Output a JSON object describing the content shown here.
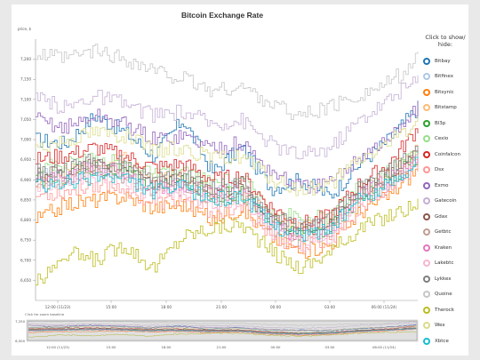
{
  "chart_data": {
    "type": "line",
    "title": "Bitcoin Exchange Rate",
    "ylabel": "price, $",
    "ylim": [
      6600,
      7250
    ],
    "y_ticks": [
      6650,
      6700,
      6750,
      6800,
      6850,
      6900,
      6950,
      7000,
      7050,
      7100,
      7150,
      7200
    ],
    "y_tick_labels": [
      "6,650",
      "6,700",
      "6,750",
      "6,800",
      "6,850",
      "6,900",
      "6,950",
      "7,000",
      "7,050",
      "7,100",
      "7,150",
      "7,200"
    ],
    "x_ticks": [
      "12:00 (11/23)",
      "15:00",
      "18:00",
      "21:00",
      "00:00",
      "03:00",
      "06:00 (11/24)"
    ],
    "legend_title": "Click to show/ hide:",
    "series": [
      {
        "name": "Bitbay",
        "color": "#1f77b4",
        "values": [
          7000,
          6990,
          7060,
          7020,
          6960,
          7050,
          6920,
          6980,
          6880,
          6900,
          6860,
          6940,
          7000,
          7080
        ]
      },
      {
        "name": "Bitfinex",
        "color": "#aec7e8",
        "values": [
          6920,
          6900,
          6930,
          6910,
          6880,
          6890,
          6870,
          6880,
          6800,
          6780,
          6790,
          6860,
          6890,
          6950
        ]
      },
      {
        "name": "Bitsynic",
        "color": "#ff7f0e",
        "values": [
          6800,
          6840,
          6850,
          6860,
          6830,
          6840,
          6800,
          6830,
          6760,
          6720,
          6740,
          6820,
          6860,
          6930
        ]
      },
      {
        "name": "Bitstamp",
        "color": "#ffbb78",
        "values": [
          6880,
          6920,
          6930,
          6950,
          6900,
          6910,
          6860,
          6870,
          6810,
          6780,
          6790,
          6860,
          6900,
          6980
        ]
      },
      {
        "name": "Bl3p",
        "color": "#2ca02c",
        "values": [
          6900,
          6910,
          6930,
          6920,
          6880,
          6900,
          6860,
          6870,
          6790,
          6760,
          6780,
          6860,
          6900,
          6960
        ]
      },
      {
        "name": "Cexio",
        "color": "#98df8a",
        "values": [
          6930,
          6940,
          6950,
          6940,
          6910,
          6920,
          6890,
          6900,
          6830,
          6800,
          6810,
          6880,
          6920,
          6980
        ]
      },
      {
        "name": "Coinfalcon",
        "color": "#d62728",
        "values": [
          6950,
          6960,
          6980,
          6960,
          6930,
          6940,
          6900,
          6910,
          6830,
          6790,
          6810,
          6890,
          6940,
          7030
        ]
      },
      {
        "name": "Dsx",
        "color": "#ff9896",
        "values": [
          6860,
          6870,
          6890,
          6880,
          6840,
          6850,
          6820,
          6830,
          6760,
          6730,
          6750,
          6830,
          6880,
          6940
        ]
      },
      {
        "name": "Exmo",
        "color": "#9467bd",
        "values": [
          7050,
          7030,
          7060,
          7040,
          7000,
          7010,
          6980,
          6990,
          6920,
          6880,
          6890,
          6960,
          7000,
          7080
        ]
      },
      {
        "name": "Gatecoin",
        "color": "#c5b0d5",
        "values": [
          7100,
          7080,
          7110,
          7090,
          7060,
          7070,
          7040,
          7050,
          6990,
          6960,
          6980,
          7050,
          7100,
          7150
        ]
      },
      {
        "name": "Gdax",
        "color": "#8c564b",
        "values": [
          6910,
          6920,
          6940,
          6930,
          6890,
          6900,
          6870,
          6880,
          6800,
          6770,
          6790,
          6870,
          6910,
          6970
        ]
      },
      {
        "name": "Getbtc",
        "color": "#c49c94",
        "values": [
          6890,
          6900,
          6920,
          6910,
          6870,
          6880,
          6850,
          6860,
          6780,
          6750,
          6770,
          6850,
          6890,
          6950
        ]
      },
      {
        "name": "Kraken",
        "color": "#e377c2",
        "values": [
          6900,
          6910,
          6930,
          6920,
          6880,
          6890,
          6860,
          6870,
          6790,
          6760,
          6780,
          6860,
          6900,
          6960
        ]
      },
      {
        "name": "Lakebtc",
        "color": "#f7b6d2",
        "values": [
          6870,
          6890,
          6910,
          6900,
          6860,
          6870,
          6840,
          6850,
          6770,
          6740,
          6760,
          6840,
          6880,
          6940
        ]
      },
      {
        "name": "Lykkex",
        "color": "#7f7f7f",
        "values": [
          6920,
          6930,
          6950,
          6940,
          6900,
          6910,
          6880,
          6890,
          6810,
          6780,
          6800,
          6880,
          6920,
          6980
        ]
      },
      {
        "name": "Quoine",
        "color": "#c7c7c7",
        "values": [
          7210,
          7200,
          7220,
          7200,
          7170,
          7150,
          7120,
          7130,
          7090,
          7060,
          7080,
          7110,
          7140,
          7200
        ]
      },
      {
        "name": "Therock",
        "color": "#bcbd22",
        "values": [
          6640,
          6720,
          6700,
          6740,
          6680,
          6760,
          6780,
          6790,
          6720,
          6680,
          6720,
          6780,
          6810,
          6840
        ]
      },
      {
        "name": "Wex",
        "color": "#dbdb8d",
        "values": [
          6980,
          7000,
          7020,
          7010,
          6970,
          6980,
          6950,
          6960,
          6900,
          6870,
          6890,
          6950,
          6990,
          7050
        ]
      },
      {
        "name": "Xbtce",
        "color": "#17becf",
        "values": [
          6880,
          6890,
          6910,
          6900,
          6870,
          6880,
          6850,
          6860,
          6790,
          6760,
          6780,
          6850,
          6890,
          6950
        ]
      }
    ],
    "overview": {
      "hint": "Click for zoom baseline",
      "y_tick_labels": [
        "7,250",
        "6,500"
      ]
    }
  }
}
